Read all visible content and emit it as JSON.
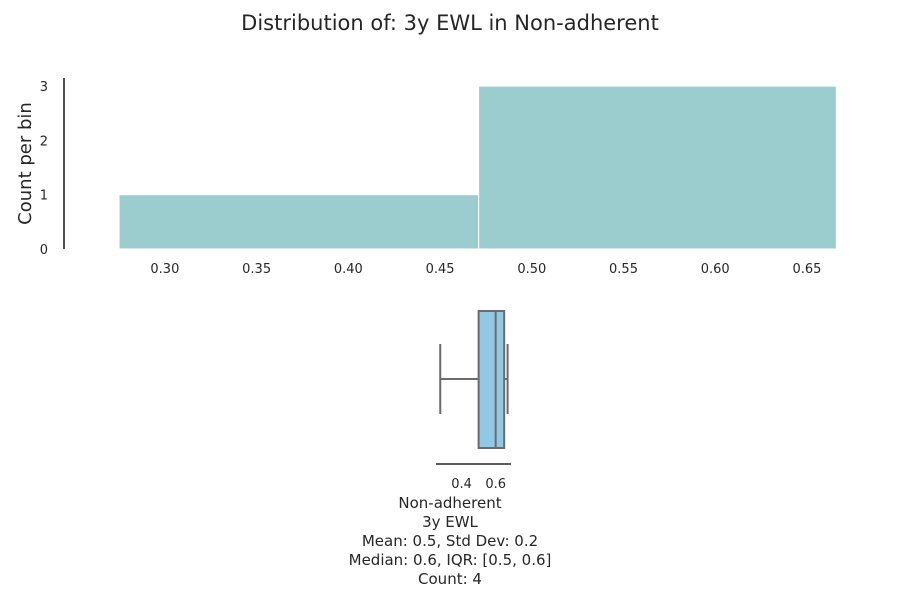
{
  "title": "Distribution of: 3y EWL in Non-adherent",
  "chart_data": [
    {
      "type": "histogram",
      "ylabel": "Count per bin",
      "xlabel": "",
      "bins": [
        {
          "x0": 0.275,
          "x1": 0.471,
          "count": 1
        },
        {
          "x0": 0.471,
          "x1": 0.666,
          "count": 3
        }
      ],
      "xlim": [
        0.245,
        0.68
      ],
      "ylim": [
        0,
        3.15
      ],
      "xticks": [
        0.3,
        0.35,
        0.4,
        0.45,
        0.5,
        0.55,
        0.6,
        0.65
      ],
      "xtick_labels": [
        "0.30",
        "0.35",
        "0.40",
        "0.45",
        "0.50",
        "0.55",
        "0.60",
        "0.65"
      ],
      "yticks": [
        0,
        1,
        2,
        3
      ],
      "ytick_labels": [
        "0",
        "1",
        "2",
        "3"
      ],
      "color": "#9ccdce",
      "grid": false
    },
    {
      "type": "box",
      "orientation": "horizontal",
      "whisker_low": 0.275,
      "q1": 0.5,
      "median": 0.6,
      "q3": 0.65,
      "whisker_high": 0.67,
      "xlim": [
        0.25,
        0.69
      ],
      "xticks": [
        0.4,
        0.6
      ],
      "xtick_labels": [
        "0.4",
        "0.6"
      ],
      "color": "#92c9e2",
      "line_color": "#6b6b6b"
    }
  ],
  "caption": {
    "group": "Non-adherent",
    "variable": "3y EWL",
    "mean_sd": "Mean: 0.5, Std Dev: 0.2",
    "median_iqr": "Median: 0.6, IQR: [0.5, 0.6]",
    "count": "Count: 4"
  }
}
